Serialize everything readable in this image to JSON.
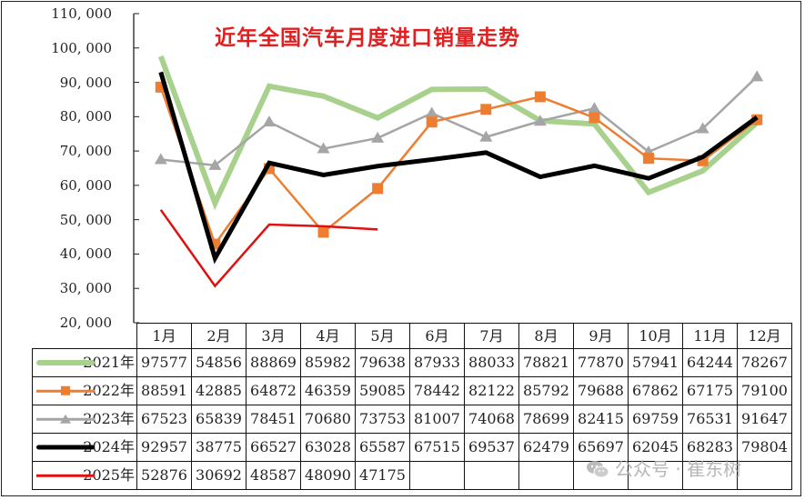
{
  "chart_data": {
    "type": "line",
    "title": "近年全国汽车月度进口销量走势",
    "xlabel": "",
    "ylabel": "",
    "ylim": [
      20000,
      110000
    ],
    "yticks": [
      110000,
      100000,
      90000,
      80000,
      70000,
      60000,
      50000,
      40000,
      30000,
      20000
    ],
    "ytick_labels": [
      "110, 000",
      "100, 000",
      "90, 000",
      "80, 000",
      "70, 000",
      "60, 000",
      "50, 000",
      "40, 000",
      "30, 000",
      "20, 000"
    ],
    "grid": false,
    "legend_position": "data-table",
    "categories": [
      "1月",
      "2月",
      "3月",
      "4月",
      "5月",
      "6月",
      "7月",
      "8月",
      "9月",
      "10月",
      "11月",
      "12月"
    ],
    "series": [
      {
        "name": "2021年",
        "color": "#a9d18e",
        "width": 6,
        "marker": "none",
        "values": [
          97577,
          54856,
          88869,
          85982,
          79638,
          87933,
          88033,
          78821,
          77870,
          57941,
          64244,
          78267
        ]
      },
      {
        "name": "2022年",
        "color": "#ed7d31",
        "width": 2.5,
        "marker": "square",
        "values": [
          88591,
          42885,
          64872,
          46359,
          59085,
          78442,
          82122,
          85792,
          79688,
          67862,
          67175,
          79100
        ]
      },
      {
        "name": "2023年",
        "color": "#a5a5a5",
        "width": 2.5,
        "marker": "triangle",
        "values": [
          67523,
          65839,
          78451,
          70680,
          73753,
          81007,
          74068,
          78699,
          82415,
          69759,
          76531,
          91647
        ]
      },
      {
        "name": "2024年",
        "color": "#000000",
        "width": 5,
        "marker": "none",
        "values": [
          92957,
          38775,
          66527,
          63028,
          65587,
          67515,
          69537,
          62479,
          65697,
          62045,
          68283,
          79804
        ]
      },
      {
        "name": "2025年",
        "color": "#e01010",
        "width": 2.5,
        "marker": "none",
        "values": [
          52876,
          30692,
          48587,
          48090,
          47175,
          null,
          null,
          null,
          null,
          null,
          null,
          null
        ]
      }
    ]
  },
  "table": {
    "rows": [
      {
        "label": "2021年",
        "cells": [
          "97577",
          "54856",
          "88869",
          "85982",
          "79638",
          "87933",
          "88033",
          "78821",
          "77870",
          "57941",
          "64244",
          "78267"
        ]
      },
      {
        "label": "2022年",
        "cells": [
          "88591",
          "42885",
          "64872",
          "46359",
          "59085",
          "78442",
          "82122",
          "85792",
          "79688",
          "67862",
          "67175",
          "79100"
        ]
      },
      {
        "label": "2023年",
        "cells": [
          "67523",
          "65839",
          "78451",
          "70680",
          "73753",
          "81007",
          "74068",
          "78699",
          "82415",
          "69759",
          "76531",
          "91647"
        ]
      },
      {
        "label": "2024年",
        "cells": [
          "92957",
          "38775",
          "66527",
          "63028",
          "65587",
          "67515",
          "69537",
          "62479",
          "65697",
          "62045",
          "68283",
          "79804"
        ]
      },
      {
        "label": "2025年",
        "cells": [
          "52876",
          "30692",
          "48587",
          "48090",
          "47175",
          "",
          "",
          "",
          "",
          "",
          "",
          ""
        ]
      }
    ]
  },
  "watermark": {
    "text": "公众号 · 崔东树",
    "icon": "wechat-icon"
  }
}
